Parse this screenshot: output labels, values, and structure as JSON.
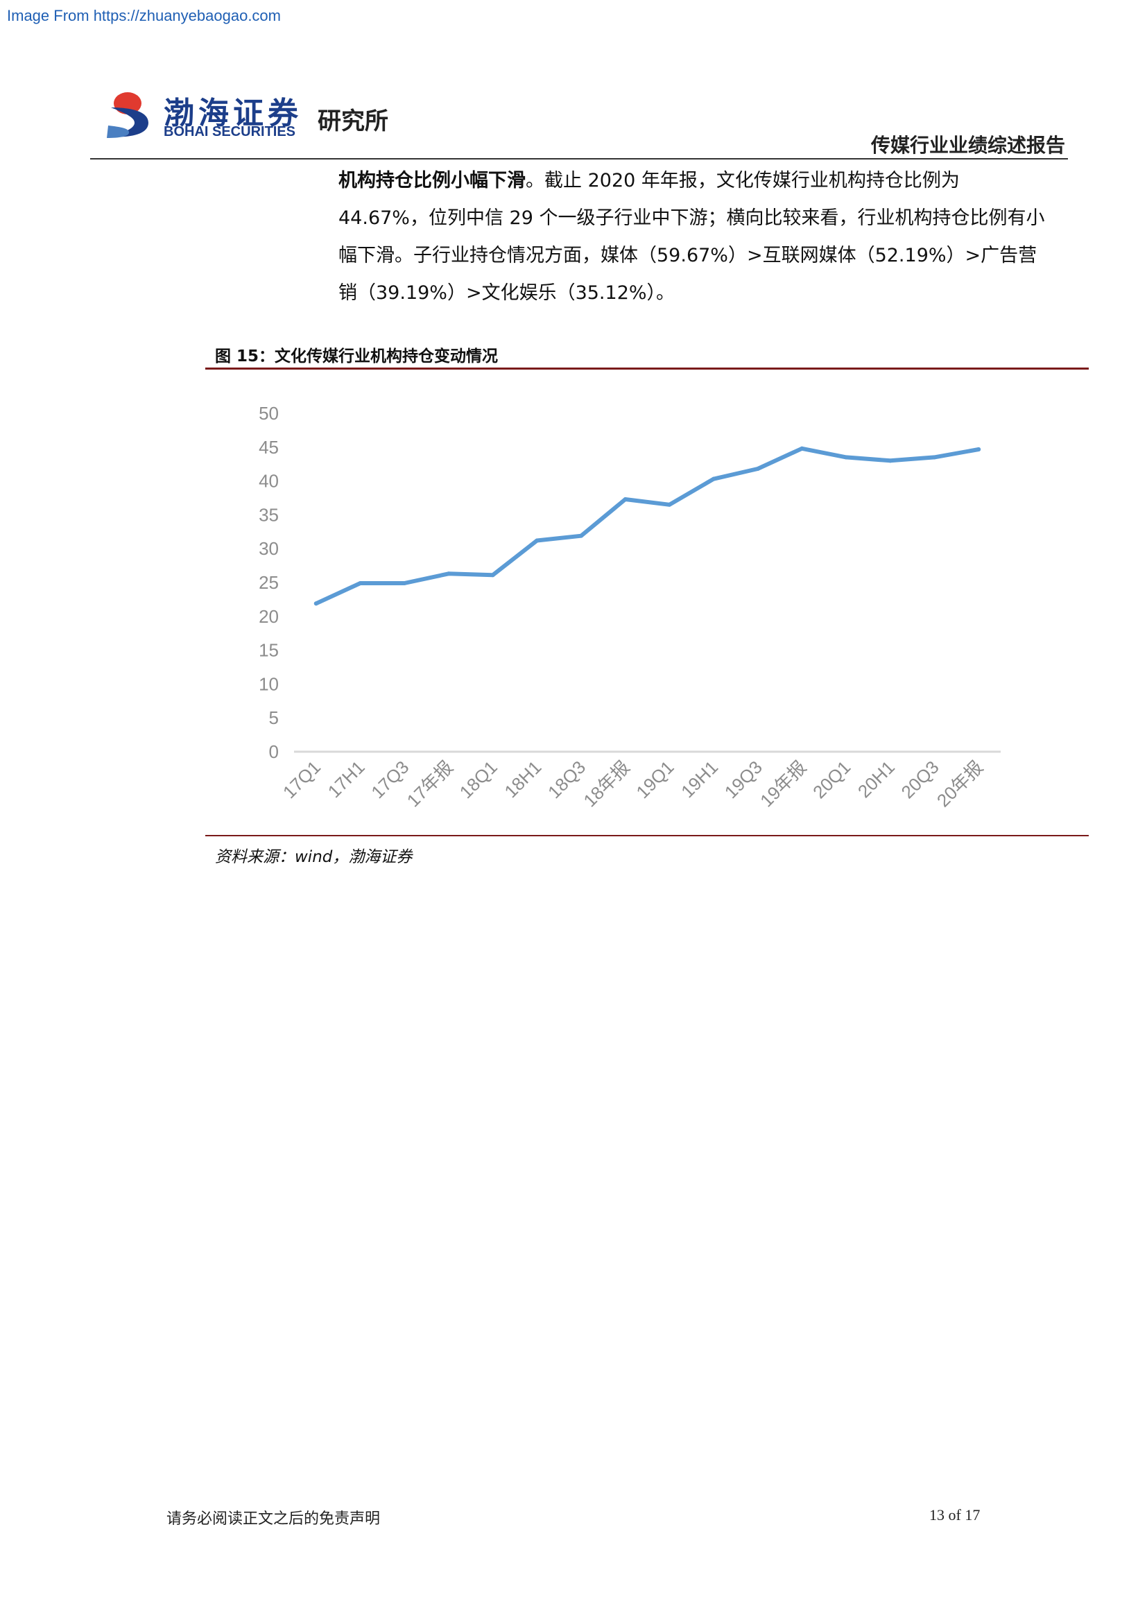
{
  "watermark": "Image From https://zhuanyebaogao.com",
  "logo": {
    "cn": "渤海证券",
    "en": "BOHAI SECURITIES",
    "inst": "研究所"
  },
  "header": {
    "title": "传媒行业业绩综述报告"
  },
  "body": {
    "bold_lead": "机构持仓比例小幅下滑",
    "text": "。截止 2020 年年报，文化传媒行业机构持仓比例为 44.67%，位列中信 29 个一级子行业中下游；横向比较来看，行业机构持仓比例有小幅下滑。子行业持仓情况方面，媒体（59.67%）>互联网媒体（52.19%）>广告营销（39.19%）>文化娱乐（35.12%）。"
  },
  "figure": {
    "title": "图 15：文化传媒行业机构持仓变动情况",
    "source": "资料来源：wind，渤海证券"
  },
  "chart_data": {
    "type": "line",
    "categories": [
      "17Q1",
      "17H1",
      "17Q3",
      "17年报",
      "18Q1",
      "18H1",
      "18Q3",
      "18年报",
      "19Q1",
      "19H1",
      "19Q3",
      "19年报",
      "20Q1",
      "20H1",
      "20Q3",
      "20年报"
    ],
    "series": [
      {
        "values": [
          21.9,
          24.9,
          24.9,
          26.3,
          26.1,
          31.2,
          31.9,
          37.3,
          36.5,
          40.3,
          41.8,
          44.8,
          43.5,
          43.0,
          43.5,
          44.67
        ]
      }
    ],
    "yticks": [
      0,
      5,
      10,
      15,
      20,
      25,
      30,
      35,
      40,
      45,
      50
    ],
    "ylim": [
      0,
      50
    ],
    "grid": false,
    "line_color": "#5b9bd5",
    "axis_color": "#d9d9d9",
    "tick_color": "#8c8c8c"
  },
  "footer": {
    "disclaimer": "请务必阅读正文之后的免责声明",
    "page": "13 of 17"
  }
}
